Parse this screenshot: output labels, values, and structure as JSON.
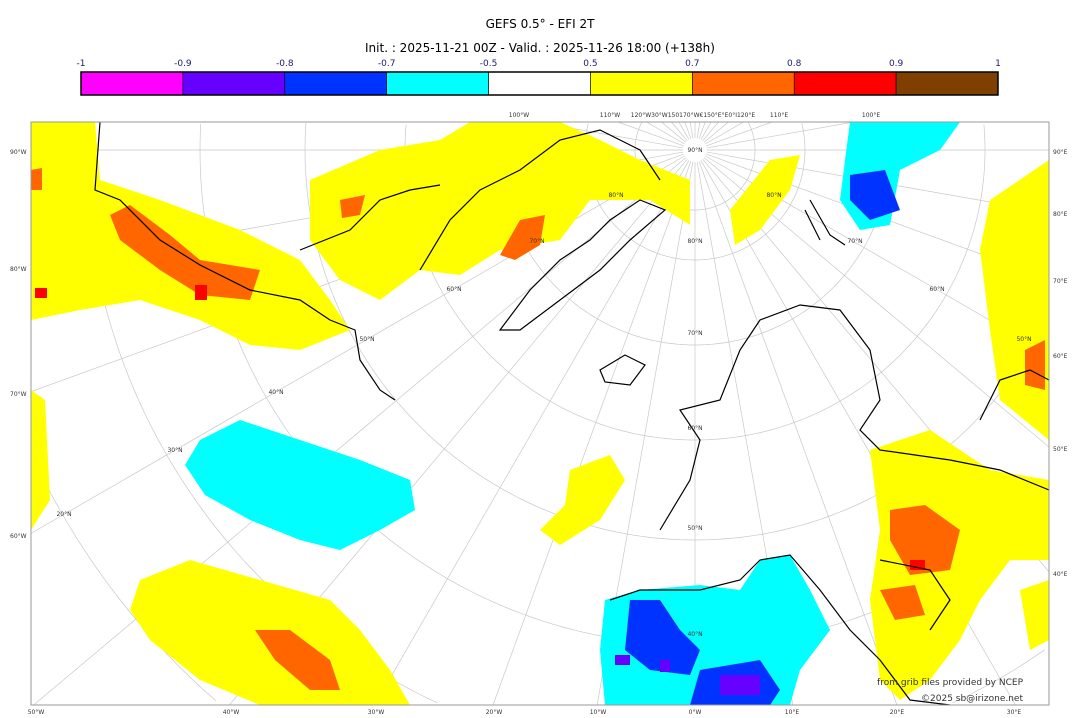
{
  "title": "GEFS 0.5° - EFI 2T",
  "subtitle": "Init. : 2025-11-21 00Z - Valid. : 2025-11-26 18:00 (+138h)",
  "colorbar": {
    "ticks": [
      "-1",
      "-0.9",
      "-0.8",
      "-0.7",
      "-0.5",
      "0.5",
      "0.7",
      "0.8",
      "0.9",
      "1"
    ],
    "colors": [
      "#ff00ff",
      "#6600ff",
      "#0033ff",
      "#00ffff",
      "#ffffff",
      "#ffff00",
      "#ff6600",
      "#ff0000",
      "#7f3f00"
    ]
  },
  "map": {
    "left_labels": [
      "90°W",
      "80°W",
      "70°W",
      "60°W"
    ],
    "right_labels": [
      "90°E",
      "80°E",
      "70°E",
      "60°E",
      "50°E",
      "40°E"
    ],
    "bottom_labels": [
      "50°W",
      "40°W",
      "30°W",
      "20°W",
      "10°W",
      "0°W",
      "10°E",
      "20°E",
      "30°E"
    ],
    "top_labels": [
      "100°W",
      "110°W",
      "120°W30°W150170°W€150°E°E0°I120°E",
      "110°E",
      "100°E"
    ],
    "lat_labels": [
      "90°N",
      "80°N",
      "70°N",
      "60°N",
      "50°N",
      "40°N",
      "30°N",
      "20°N",
      "80°N",
      "70°N",
      "60°N",
      "50°N",
      "80°N",
      "70°N",
      "60°N",
      "50°N",
      "40°N"
    ]
  },
  "credits": {
    "line1": "from grib files provided by NCEP",
    "line2": "©2025 sb@irizone.net"
  }
}
